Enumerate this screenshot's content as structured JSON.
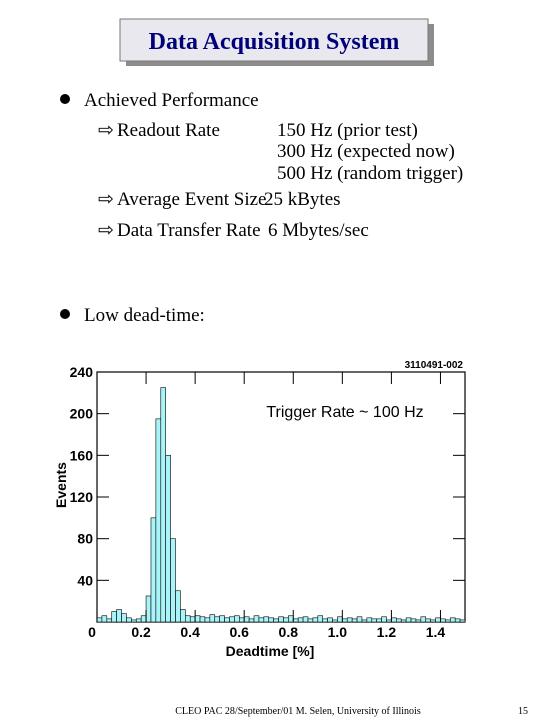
{
  "header": {
    "title": "Data Acquisition System"
  },
  "bullets": [
    {
      "text": "Achieved Performance",
      "items": [
        {
          "label": "Readout Rate",
          "values": [
            "150 Hz (prior test)",
            "300 Hz (expected now)",
            "500 Hz (random trigger)"
          ]
        },
        {
          "label": "Average Event Size",
          "values": [
            "25 kBytes"
          ]
        },
        {
          "label": "Data Transfer Rate",
          "values": [
            "6 Mbytes/sec"
          ]
        }
      ]
    },
    {
      "text": "Low dead-time:"
    }
  ],
  "chart_data": {
    "type": "histogram",
    "id_label": "3110491-002",
    "annotation": "Trigger Rate ~ 100 Hz",
    "x_label": "Deadtime [%]",
    "y_label": "Events",
    "bins": [
      0,
      0.02,
      0.04,
      0.06,
      0.08,
      0.1,
      0.12,
      0.14,
      0.16,
      0.18,
      0.2,
      0.22,
      0.24,
      0.26,
      0.28,
      0.3,
      0.32,
      0.34,
      0.36,
      0.38,
      0.4,
      0.42,
      0.44,
      0.46,
      0.48,
      0.5,
      0.52,
      0.54,
      0.56,
      0.58,
      0.6,
      0.62,
      0.64,
      0.66,
      0.68,
      0.7,
      0.72,
      0.74,
      0.76,
      0.78,
      0.8,
      0.82,
      0.84,
      0.86,
      0.88,
      0.9,
      0.92,
      0.94,
      0.96,
      0.98,
      1.0,
      1.02,
      1.04,
      1.06,
      1.08,
      1.1,
      1.12,
      1.14,
      1.16,
      1.18,
      1.2,
      1.22,
      1.24,
      1.26,
      1.28,
      1.3,
      1.32,
      1.34,
      1.36,
      1.38,
      1.4,
      1.42,
      1.44,
      1.46,
      1.48,
      1.5
    ],
    "values": [
      4,
      6,
      3,
      10,
      12,
      8,
      4,
      2,
      3,
      6,
      25,
      100,
      195,
      225,
      160,
      80,
      30,
      12,
      6,
      5,
      6,
      5,
      4,
      7,
      5,
      6,
      4,
      5,
      6,
      4,
      5,
      3,
      6,
      4,
      5,
      4,
      3,
      5,
      4,
      6,
      3,
      4,
      5,
      3,
      4,
      6,
      3,
      4,
      2,
      5,
      3,
      4,
      3,
      5,
      2,
      4,
      3,
      3,
      5,
      2,
      4,
      3,
      2,
      4,
      3,
      2,
      5,
      3,
      2,
      4,
      3,
      2,
      4,
      3,
      2
    ],
    "color": "#a8f4f8",
    "xlim": [
      0,
      1.5
    ],
    "xticks": [
      0,
      0.2,
      0.4,
      0.6,
      0.8,
      {
        "value": 1.0,
        "label": "1.0"
      },
      1.2,
      1.4
    ],
    "ylim": [
      0,
      240
    ],
    "yticks": [
      40,
      80,
      120,
      160,
      200,
      240
    ]
  },
  "footer": {
    "text": "CLEO PAC 28/September/01 M. Selen, University of Illinois",
    "page": 15
  }
}
